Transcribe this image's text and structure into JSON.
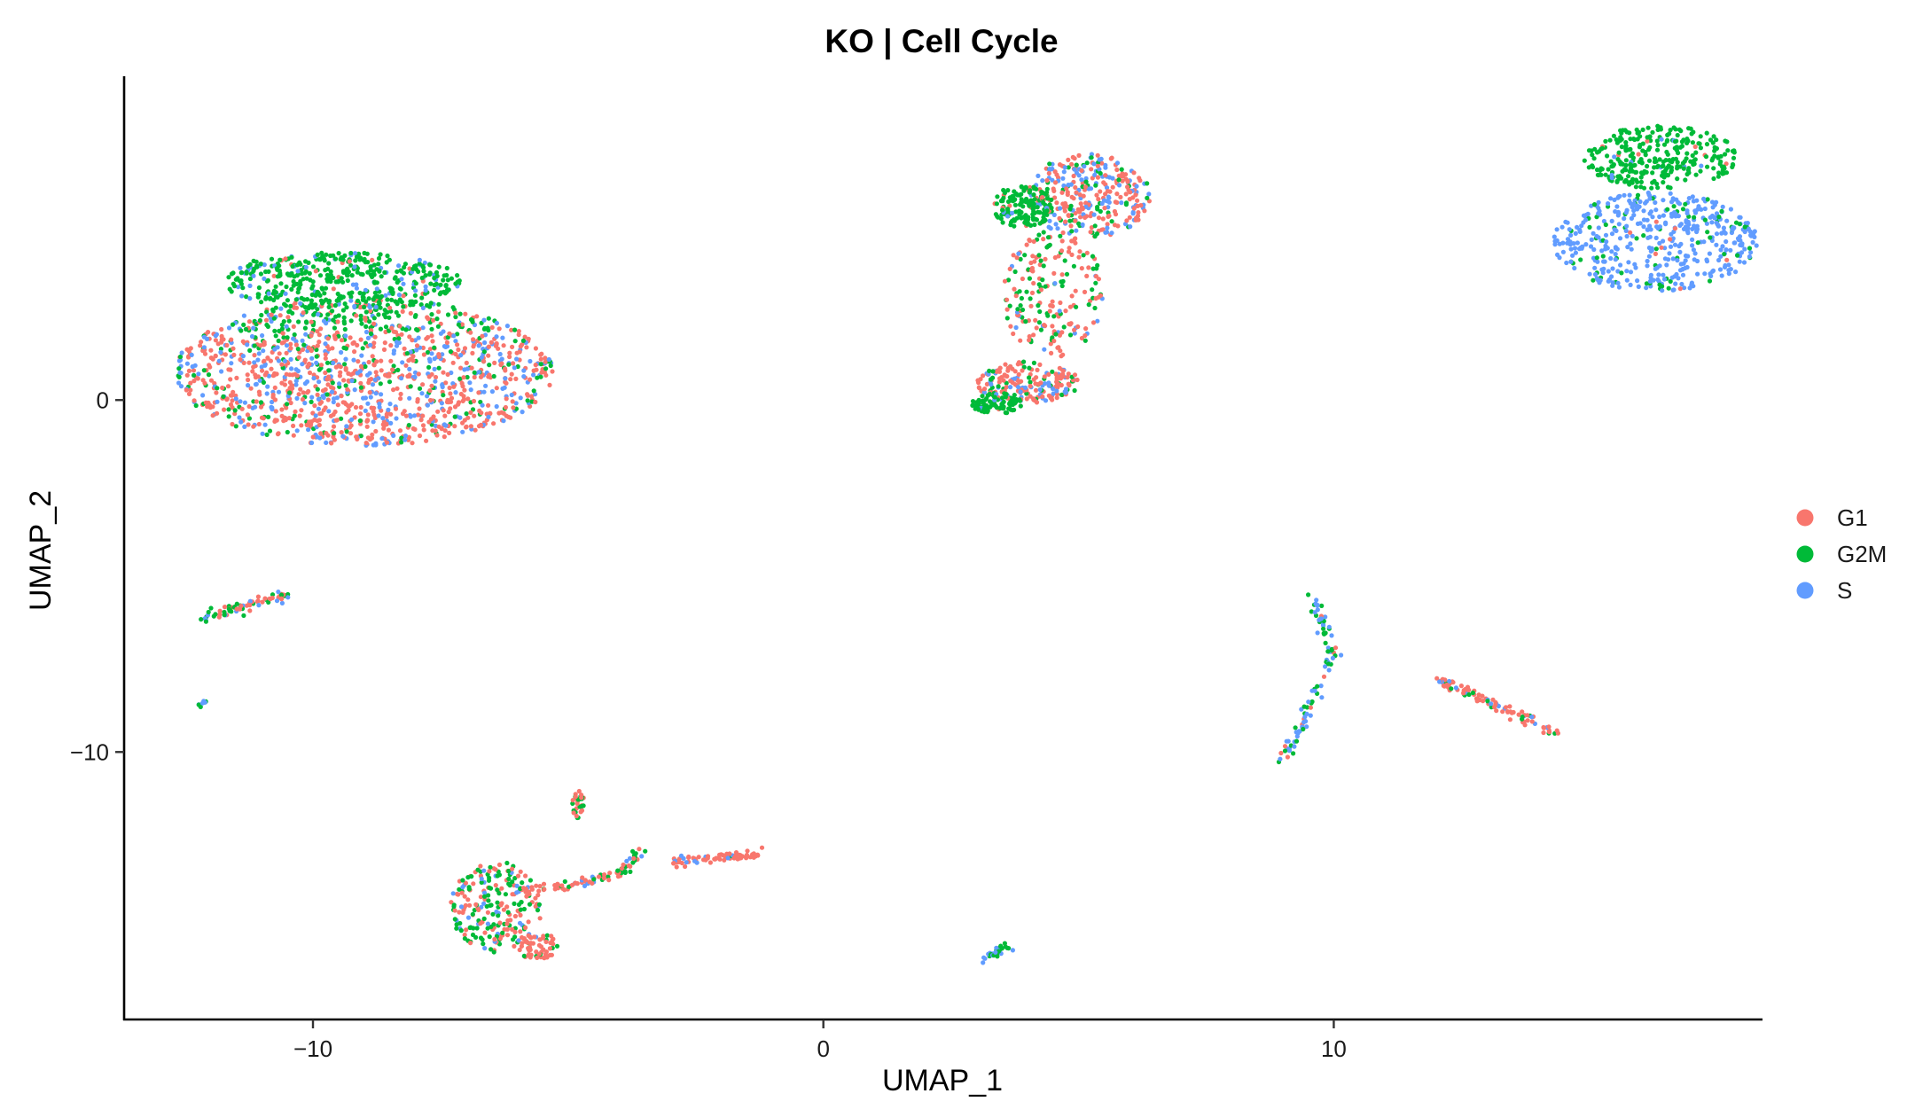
{
  "chart_data": {
    "type": "scatter",
    "title": "KO | Cell Cycle",
    "xlabel": "UMAP_1",
    "ylabel": "UMAP_2",
    "xlim": [
      -13.7,
      18.4
    ],
    "ylim": [
      -17.6,
      9.2
    ],
    "xticks": [
      -10,
      0,
      10
    ],
    "xtick_labels": [
      "−10",
      "0",
      "10"
    ],
    "yticks": [
      0,
      -10
    ],
    "ytick_labels": [
      "0",
      "−10"
    ],
    "grid": false,
    "legend_position": "right",
    "series": [
      {
        "name": "G1",
        "color": "#F8766D"
      },
      {
        "name": "G2M",
        "color": "#00BA38"
      },
      {
        "name": "S",
        "color": "#619CFF"
      }
    ],
    "clusters": [
      {
        "cx": -9.0,
        "cy": 0.8,
        "rx": 3.7,
        "ry": 2.1,
        "n": 1400,
        "mix": [
          0.55,
          0.15,
          0.3
        ],
        "g2m_side": "top"
      },
      {
        "cx": -9.5,
        "cy": 3.4,
        "rx": 2.4,
        "ry": 0.8,
        "n": 420,
        "mix": [
          0.05,
          0.8,
          0.15
        ]
      },
      {
        "cx": 5.2,
        "cy": 5.8,
        "rx": 1.2,
        "ry": 1.2,
        "n": 320,
        "mix": [
          0.6,
          0.15,
          0.25
        ]
      },
      {
        "cx": 3.9,
        "cy": 5.5,
        "rx": 0.6,
        "ry": 0.6,
        "n": 150,
        "mix": [
          0.1,
          0.85,
          0.05
        ]
      },
      {
        "cx": 4.5,
        "cy": 3.0,
        "rx": 1.0,
        "ry": 1.8,
        "n": 200,
        "mix": [
          0.6,
          0.3,
          0.1
        ]
      },
      {
        "cx": 4.0,
        "cy": 0.5,
        "rx": 1.0,
        "ry": 0.6,
        "n": 200,
        "mix": [
          0.6,
          0.15,
          0.25
        ]
      },
      {
        "cx": 3.4,
        "cy": -0.1,
        "rx": 0.5,
        "ry": 0.3,
        "n": 90,
        "mix": [
          0.05,
          0.9,
          0.05
        ]
      },
      {
        "cx": 16.3,
        "cy": 4.5,
        "rx": 2.0,
        "ry": 1.4,
        "n": 480,
        "mix": [
          0.02,
          0.15,
          0.83
        ]
      },
      {
        "cx": 16.4,
        "cy": 6.9,
        "rx": 1.5,
        "ry": 0.9,
        "n": 300,
        "mix": [
          0.02,
          0.95,
          0.03
        ]
      },
      {
        "cx": -6.4,
        "cy": -14.4,
        "rx": 0.9,
        "ry": 1.3,
        "n": 220,
        "mix": [
          0.45,
          0.4,
          0.15
        ]
      },
      {
        "cx": -5.6,
        "cy": -15.5,
        "rx": 0.4,
        "ry": 0.4,
        "n": 60,
        "mix": [
          0.85,
          0.1,
          0.05
        ]
      },
      {
        "cx": -4.8,
        "cy": -11.5,
        "rx": 0.12,
        "ry": 0.4,
        "n": 30,
        "mix": [
          0.7,
          0.3,
          0.0
        ]
      }
    ],
    "trails": [
      {
        "from": [
          -12.2,
          -6.2
        ],
        "to": [
          -10.4,
          -5.5
        ],
        "n": 70,
        "mix": [
          0.35,
          0.35,
          0.3
        ]
      },
      {
        "from": [
          -12.2,
          -8.6
        ],
        "to": [
          -12.1,
          -8.6
        ],
        "n": 8,
        "mix": [
          0.0,
          0.6,
          0.4
        ]
      },
      {
        "from": [
          -6.0,
          -14.0
        ],
        "to": [
          -4.0,
          -13.5
        ],
        "n": 60,
        "mix": [
          0.8,
          0.1,
          0.1
        ]
      },
      {
        "from": [
          -4.0,
          -13.5
        ],
        "to": [
          -3.6,
          -12.7
        ],
        "n": 30,
        "mix": [
          0.5,
          0.4,
          0.1
        ]
      },
      {
        "from": [
          -3.0,
          -13.1
        ],
        "to": [
          -1.2,
          -12.9
        ],
        "n": 70,
        "mix": [
          0.85,
          0.05,
          0.1
        ]
      },
      {
        "from": [
          3.2,
          -15.9
        ],
        "to": [
          3.6,
          -15.5
        ],
        "n": 30,
        "mix": [
          0.0,
          0.45,
          0.55
        ]
      },
      {
        "from": [
          9.6,
          -5.6
        ],
        "to": [
          10.0,
          -7.2
        ],
        "n": 40,
        "mix": [
          0.1,
          0.45,
          0.45
        ]
      },
      {
        "from": [
          10.0,
          -7.2
        ],
        "to": [
          9.0,
          -10.3
        ],
        "n": 60,
        "mix": [
          0.15,
          0.4,
          0.45
        ]
      },
      {
        "from": [
          12.0,
          -7.9
        ],
        "to": [
          14.4,
          -9.5
        ],
        "n": 100,
        "mix": [
          0.65,
          0.15,
          0.2
        ]
      }
    ]
  }
}
